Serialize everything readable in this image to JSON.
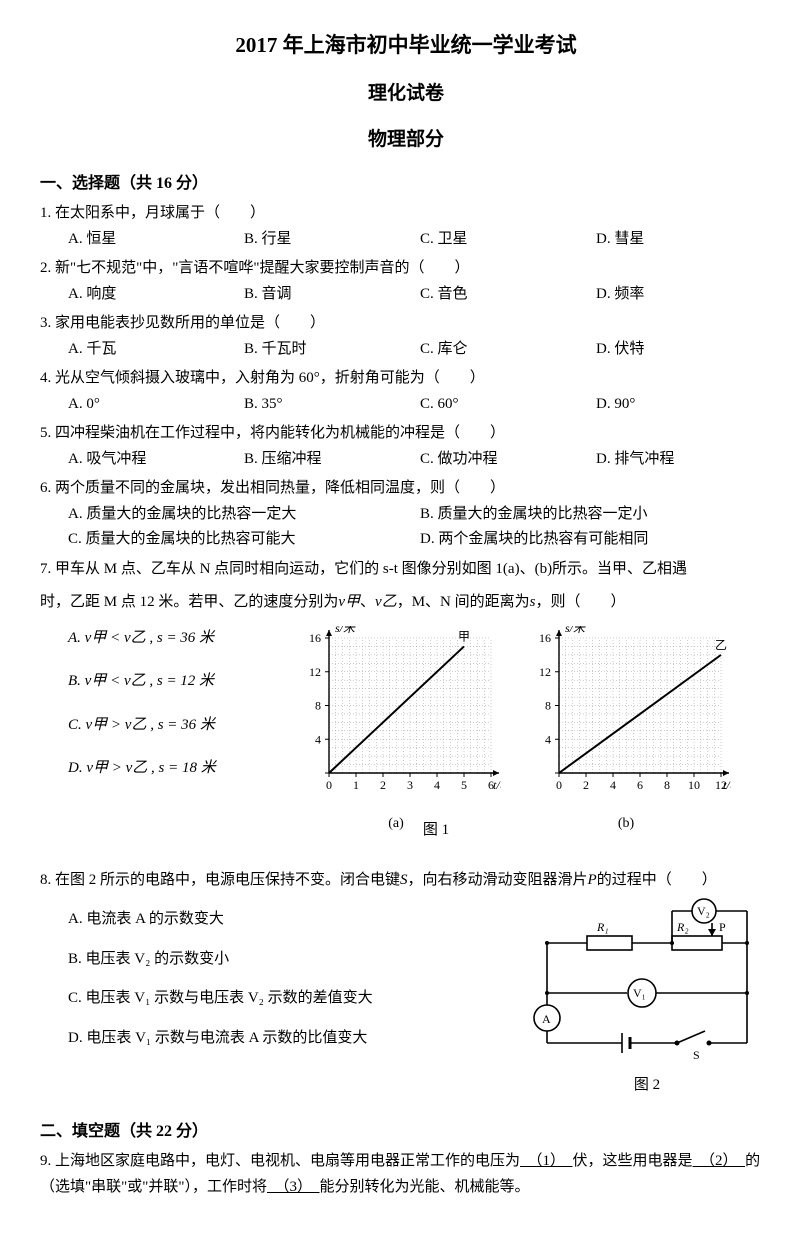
{
  "header": {
    "title": "2017 年上海市初中毕业统一学业考试",
    "subtitle1": "理化试卷",
    "subtitle2": "物理部分"
  },
  "section1": {
    "heading": "一、选择题（共 16 分）",
    "q1": {
      "stem": "1. 在太阳系中，月球属于（　　）",
      "A": "A. 恒星",
      "B": "B. 行星",
      "C": "C. 卫星",
      "D": "D. 彗星"
    },
    "q2": {
      "stem": "2. 新\"七不规范\"中，\"言语不喧哗\"提醒大家要控制声音的（　　）",
      "A": "A. 响度",
      "B": "B. 音调",
      "C": "C. 音色",
      "D": "D. 频率"
    },
    "q3": {
      "stem": "3. 家用电能表抄见数所用的单位是（　　）",
      "A": "A. 千瓦",
      "B": "B. 千瓦时",
      "C": "C. 库仑",
      "D": "D. 伏特"
    },
    "q4": {
      "stem": "4. 光从空气倾斜摄入玻璃中，入射角为 60°，折射角可能为（　　）",
      "A": "A. 0°",
      "B": "B. 35°",
      "C": "C. 60°",
      "D": "D. 90°"
    },
    "q5": {
      "stem": "5. 四冲程柴油机在工作过程中，将内能转化为机械能的冲程是（　　）",
      "A": "A. 吸气冲程",
      "B": "B. 压缩冲程",
      "C": "C. 做功冲程",
      "D": "D. 排气冲程"
    },
    "q6": {
      "stem": "6. 两个质量不同的金属块，发出相同热量，降低相同温度，则（　　）",
      "A": "A. 质量大的金属块的比热容一定大",
      "B": "B. 质量大的金属块的比热容一定小",
      "C": "C. 质量大的金属块的比热容可能大",
      "D": "D. 两个金属块的比热容有可能相同"
    },
    "q7": {
      "stem1": "7. 甲车从 M 点、乙车从 N 点同时相向运动，它们的 s-t 图像分别如图 1(a)、(b)所示。当甲、乙相遇",
      "stem2": "时，乙距 M 点 12 米。若甲、乙的速度分别为",
      "stem3": "、",
      "stem4": "，M、N 间的距离为",
      "stem5": "，则（　　）",
      "v_jia": "v甲",
      "v_yi": "v乙",
      "s": "s",
      "A": "A.  v甲 < v乙 , s = 36 米",
      "B": "B.  v甲 < v乙 , s = 12 米",
      "C": "C.  v甲 > v乙 , s = 36 米",
      "D": "D.  v甲 > v乙 , s = 18 米",
      "chart_a": {
        "type": "line",
        "ylabel": "s/米",
        "xlabel": "t/秒",
        "yticks": [
          0,
          4,
          8,
          12,
          16
        ],
        "xticks": [
          0,
          1,
          2,
          3,
          4,
          5,
          6
        ],
        "line_label": "甲",
        "data": [
          [
            0,
            0
          ],
          [
            5,
            15
          ]
        ],
        "caption": "(a)"
      },
      "chart_b": {
        "type": "line",
        "ylabel": "s/米",
        "xlabel": "t/秒",
        "yticks": [
          0,
          4,
          8,
          12,
          16
        ],
        "xticks": [
          0,
          2,
          4,
          6,
          8,
          10,
          12
        ],
        "line_label": "乙",
        "data": [
          [
            0,
            0
          ],
          [
            12,
            14
          ]
        ],
        "caption": "(b)"
      },
      "fig_label": "图 1"
    },
    "q8": {
      "stem": "8. 在图 2 所示的电路中，电源电压保持不变。闭合电键",
      "stem2": "，向右移动滑动变阻器滑片",
      "stem3": "的过程中（　　）",
      "S": "S",
      "P": "P",
      "A": "A. 电流表 A 的示数变大",
      "B": "B. 电压表 V₂ 的示数变小",
      "C": "C. 电压表 V₁ 示数与电压表 V₂ 示数的差值变大",
      "D": "D. 电压表 V₁ 示数与电流表 A 示数的比值变大",
      "circuit": {
        "labels": {
          "V1": "V₁",
          "V2": "V₂",
          "A": "A",
          "R1": "R₁",
          "R2": "R₂",
          "P": "P",
          "S": "S"
        }
      },
      "fig_label": "图 2"
    }
  },
  "section2": {
    "heading": "二、填空题（共 22 分）",
    "q9": {
      "p1": "9. 上海地区家庭电路中，电灯、电视机、电扇等用电器正常工作的电压为",
      "b1": "　（1）　",
      "p2": "伏，这些用电器是",
      "b2": "　（2）　",
      "p3": "的（选填\"串联\"或\"并联\"），工作时将",
      "b3": "　（3）　",
      "p4": "能分别转化为光能、机械能等。"
    }
  },
  "colors": {
    "text": "#000000",
    "bg": "#ffffff",
    "grid": "#9a9a9a",
    "axis": "#000000",
    "line": "#000000"
  }
}
